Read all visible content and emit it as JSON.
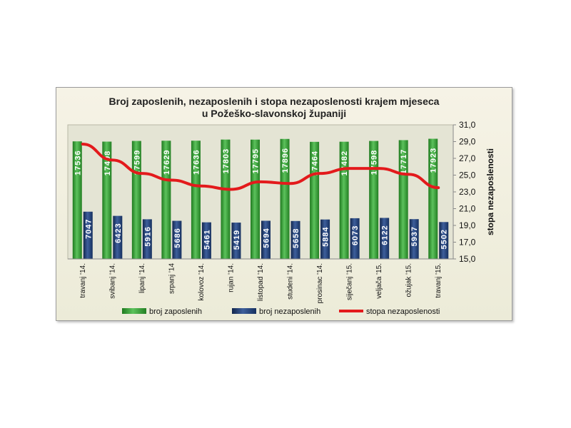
{
  "chart_data": {
    "type": "bar",
    "title": "Broj zaposlenih, nezaposlenih i stopa nezaposlenosti krajem mjeseca",
    "subtitle": "u Požeško-slavonskoj županiji",
    "categories": [
      "travanj '14.",
      "svibanj '14.",
      "lipanj '14.",
      "srpanj '14",
      "kolovoz '14.",
      "rujan '14.",
      "listopad '14.",
      "studeni '14.",
      "prosinac '14.",
      "siječanj '15.",
      "veljača '15.",
      "ožujak '15.",
      "travanj '15."
    ],
    "series": [
      {
        "name": "broj zaposlenih",
        "type": "bar",
        "color": "#2f9a2f",
        "values": [
          17536,
          17498,
          17599,
          17629,
          17636,
          17803,
          17795,
          17896,
          17464,
          17482,
          17598,
          17717,
          17923
        ]
      },
      {
        "name": "broj nezaposlenih",
        "type": "bar",
        "color": "#1f3c73",
        "values": [
          7047,
          6423,
          5916,
          5686,
          5461,
          5419,
          5694,
          5658,
          5884,
          6073,
          6122,
          5937,
          5502
        ]
      },
      {
        "name": "stopa nezaposlenosti",
        "type": "line",
        "axis": "right",
        "color": "#e31a1c",
        "values": [
          28.7,
          26.8,
          25.2,
          24.4,
          23.7,
          23.3,
          24.2,
          24.0,
          25.2,
          25.8,
          25.8,
          25.1,
          23.5
        ]
      }
    ],
    "y_right": {
      "label": "stopa nezaposlenosti",
      "ticks": [
        "15,0",
        "17,0",
        "19,0",
        "21,0",
        "23,0",
        "25,0",
        "27,0",
        "29,0",
        "31,0"
      ],
      "range": [
        15,
        31
      ]
    },
    "bar_axis_range": [
      0,
      20000
    ],
    "legend_position": "bottom",
    "grid": false
  }
}
